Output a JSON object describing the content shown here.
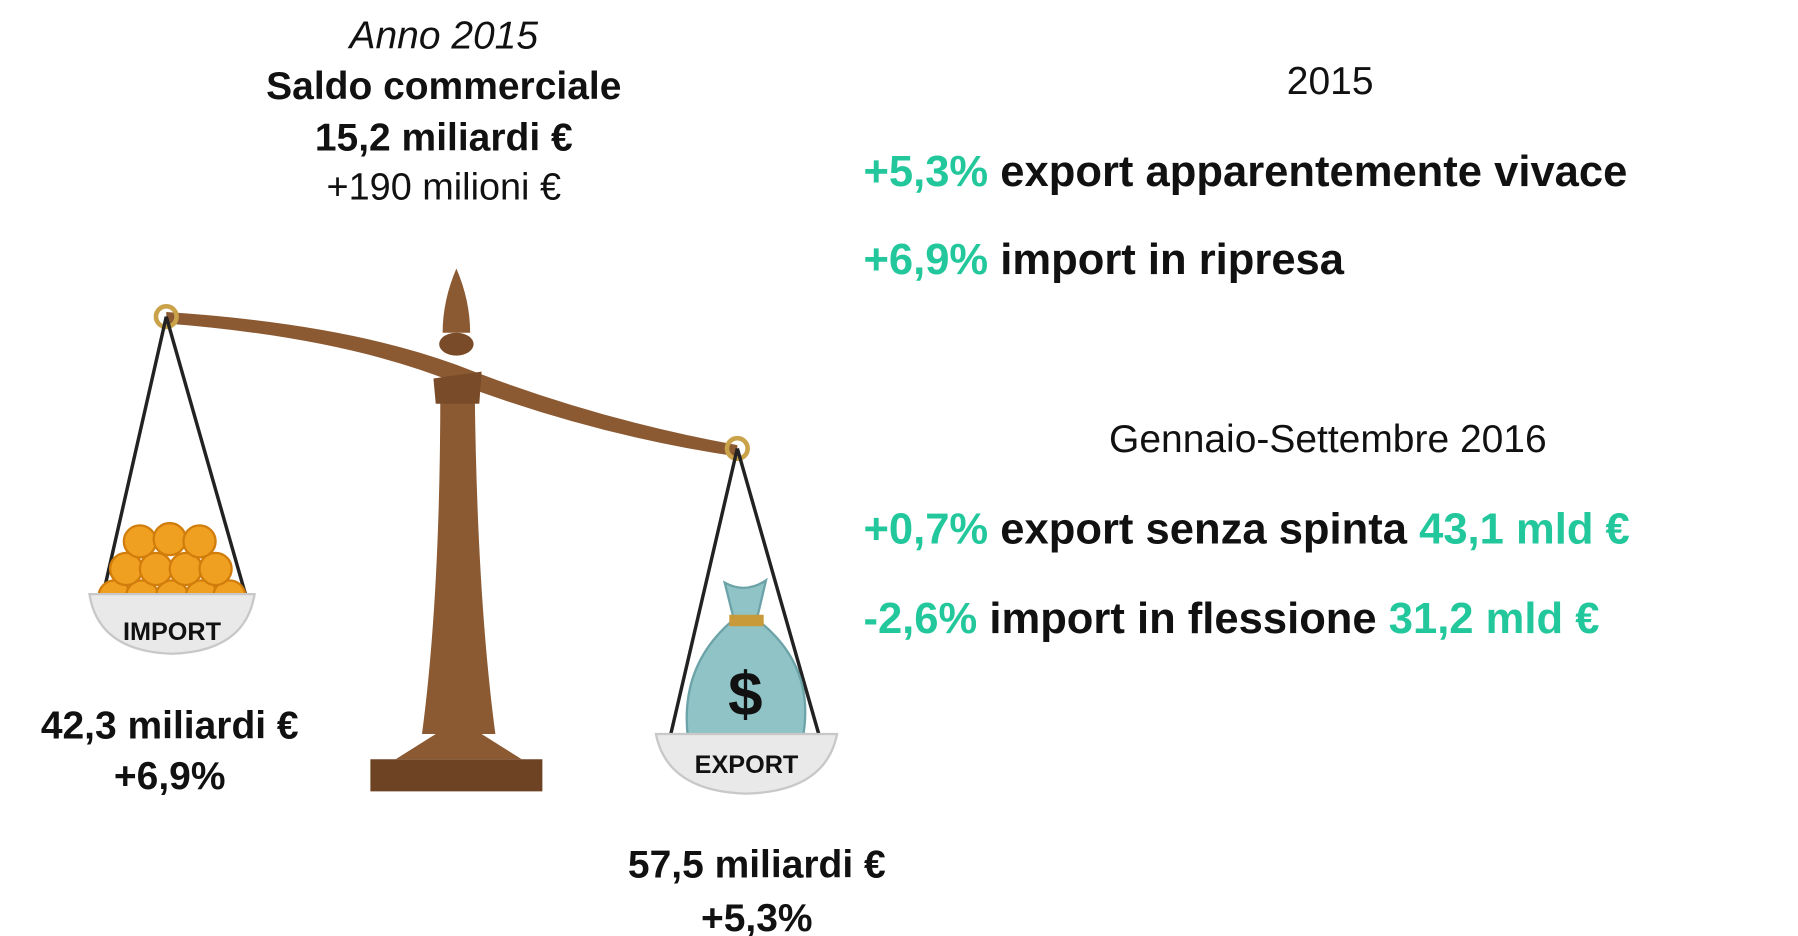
{
  "left_header": {
    "period": "Anno 2015",
    "title": "Saldo commerciale",
    "balance": "15,2 miliardi €",
    "change": "+190 milioni €"
  },
  "scale": {
    "import_label": "IMPORT",
    "export_label": "EXPORT",
    "bag_symbol": "$"
  },
  "import": {
    "amount": "42,3 miliardi €",
    "change": "+6,9%"
  },
  "export": {
    "amount": "57,5 miliardi €",
    "change": "+5,3%"
  },
  "sections": [
    {
      "heading": "2015",
      "lines": [
        {
          "change": "+5,3%",
          "text": "export apparentemente vivace"
        },
        {
          "change": "+6,9%",
          "text": "import in ripresa"
        }
      ]
    },
    {
      "heading": "Gennaio-Settembre 2016",
      "lines": [
        {
          "change": "+0,7%",
          "text": "export senza spinta",
          "amount": "43,1 mld €"
        },
        {
          "change": "-2,6%",
          "text": "import in flessione",
          "amount": "31,2 mld €"
        }
      ]
    }
  ]
}
